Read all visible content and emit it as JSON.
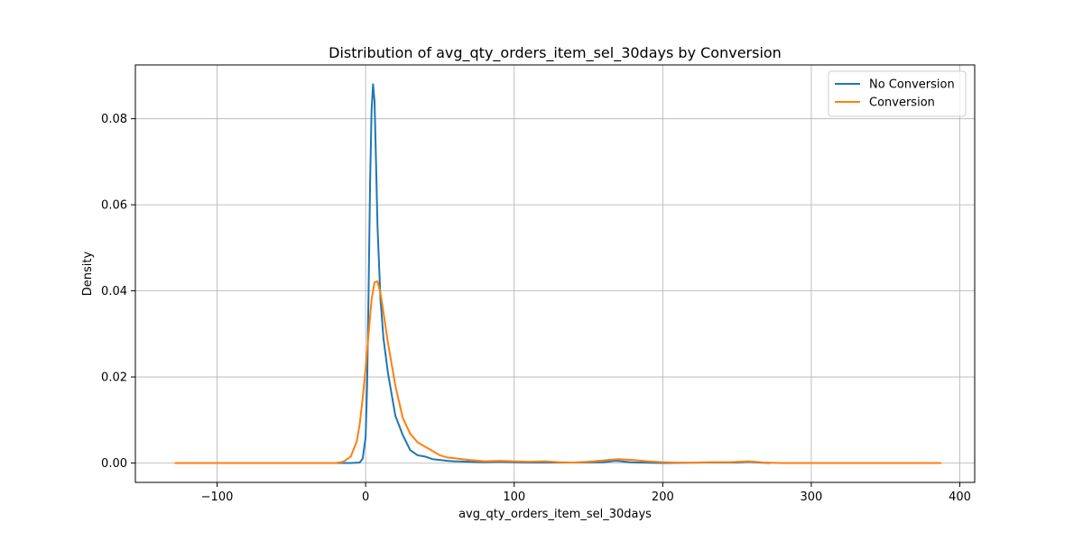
{
  "chart_data": {
    "type": "line",
    "title": "Distribution of avg_qty_orders_item_sel_30days by Conversion",
    "xlabel": "avg_qty_orders_item_sel_30days",
    "ylabel": "Density",
    "xlim": [
      -155,
      410
    ],
    "ylim": [
      -0.0045,
      0.0925
    ],
    "xticks": [
      -100,
      0,
      100,
      200,
      300,
      400
    ],
    "xtick_labels": [
      "−100",
      "0",
      "100",
      "200",
      "300",
      "400"
    ],
    "yticks": [
      0.0,
      0.02,
      0.04,
      0.06,
      0.08
    ],
    "ytick_labels": [
      "0.00",
      "0.02",
      "0.04",
      "0.06",
      "0.08"
    ],
    "grid": true,
    "legend_position": "top-right",
    "series": [
      {
        "name": "No Conversion",
        "color": "#1f77b4",
        "points": [
          [
            -128,
            0
          ],
          [
            -10,
            0
          ],
          [
            -4,
            0.0001
          ],
          [
            -2,
            0.001
          ],
          [
            0,
            0.006
          ],
          [
            1,
            0.018
          ],
          [
            2,
            0.04
          ],
          [
            3,
            0.065
          ],
          [
            4,
            0.082
          ],
          [
            5,
            0.088
          ],
          [
            6,
            0.084
          ],
          [
            7,
            0.07
          ],
          [
            8,
            0.055
          ],
          [
            10,
            0.038
          ],
          [
            12,
            0.029
          ],
          [
            15,
            0.021
          ],
          [
            18,
            0.015
          ],
          [
            20,
            0.011
          ],
          [
            25,
            0.0065
          ],
          [
            30,
            0.003
          ],
          [
            35,
            0.0018
          ],
          [
            40,
            0.0015
          ],
          [
            45,
            0.0009
          ],
          [
            50,
            0.0007
          ],
          [
            55,
            0.0005
          ],
          [
            60,
            0.0004
          ],
          [
            70,
            0.0003
          ],
          [
            80,
            0.0002
          ],
          [
            90,
            0.0003
          ],
          [
            100,
            0.0002
          ],
          [
            110,
            0.0001
          ],
          [
            120,
            0.0001
          ],
          [
            140,
            0.0001
          ],
          [
            160,
            0.0002
          ],
          [
            168,
            0.0005
          ],
          [
            172,
            0.0004
          ],
          [
            178,
            0.0002
          ],
          [
            185,
            0.0001
          ],
          [
            200,
            0
          ],
          [
            230,
            0.0001
          ],
          [
            250,
            0.0001
          ],
          [
            258,
            0.0003
          ],
          [
            265,
            0.0001
          ],
          [
            272,
            0
          ]
        ]
      },
      {
        "name": "Conversion",
        "color": "#ff7f0e",
        "points": [
          [
            -128,
            0
          ],
          [
            -20,
            0
          ],
          [
            -15,
            0.0003
          ],
          [
            -10,
            0.0015
          ],
          [
            -6,
            0.005
          ],
          [
            -4,
            0.009
          ],
          [
            -2,
            0.015
          ],
          [
            0,
            0.022
          ],
          [
            2,
            0.03
          ],
          [
            4,
            0.038
          ],
          [
            6,
            0.042
          ],
          [
            8,
            0.0422
          ],
          [
            10,
            0.0395
          ],
          [
            12,
            0.035
          ],
          [
            15,
            0.028
          ],
          [
            20,
            0.018
          ],
          [
            25,
            0.0105
          ],
          [
            30,
            0.0068
          ],
          [
            35,
            0.0048
          ],
          [
            40,
            0.0038
          ],
          [
            45,
            0.0028
          ],
          [
            50,
            0.0018
          ],
          [
            55,
            0.0013
          ],
          [
            60,
            0.0011
          ],
          [
            65,
            0.0009
          ],
          [
            70,
            0.0007
          ],
          [
            80,
            0.0004
          ],
          [
            90,
            0.0005
          ],
          [
            100,
            0.0004
          ],
          [
            110,
            0.0003
          ],
          [
            120,
            0.0004
          ],
          [
            130,
            0.0002
          ],
          [
            140,
            0.0001
          ],
          [
            150,
            0.0003
          ],
          [
            160,
            0.0006
          ],
          [
            170,
            0.0009
          ],
          [
            180,
            0.0007
          ],
          [
            190,
            0.0004
          ],
          [
            200,
            0.0002
          ],
          [
            210,
            0.0001
          ],
          [
            220,
            0.0001
          ],
          [
            235,
            0.0002
          ],
          [
            245,
            0.0002
          ],
          [
            258,
            0.0004
          ],
          [
            268,
            0.0001
          ],
          [
            280,
            0
          ],
          [
            387,
            0
          ]
        ]
      }
    ]
  }
}
